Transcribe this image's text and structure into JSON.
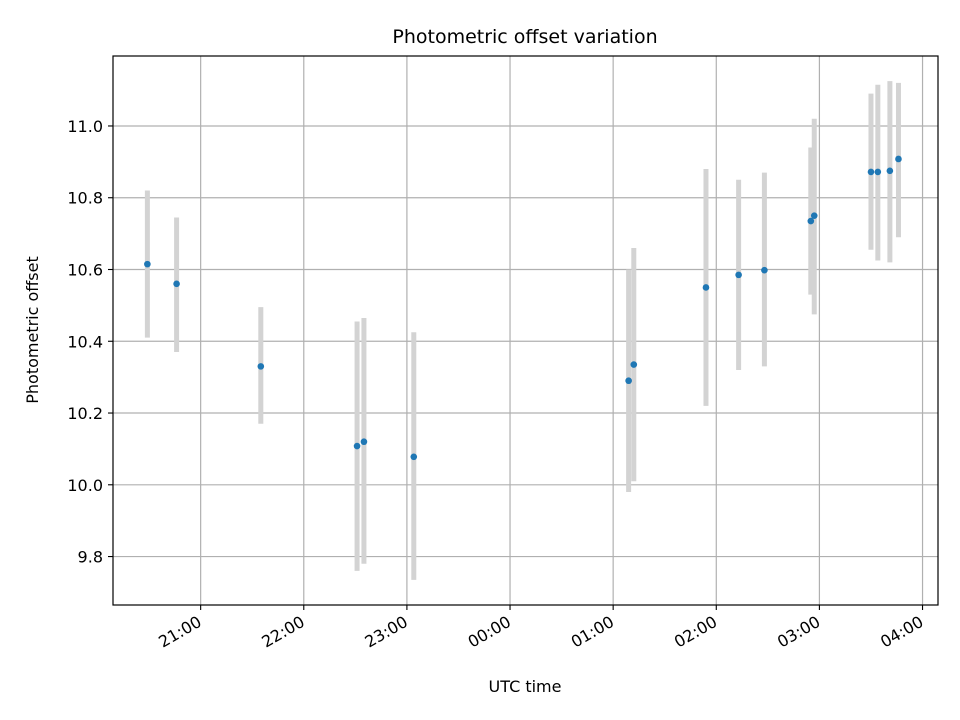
{
  "chart_data": {
    "type": "scatter",
    "title": "Photometric offset variation",
    "xlabel": "UTC time",
    "ylabel": "Photometric offset",
    "x_tick_labels": [
      "21:00",
      "22:00",
      "23:00",
      "00:00",
      "01:00",
      "02:00",
      "03:00",
      "04:00"
    ],
    "y_tick_labels": [
      "9.8",
      "10.0",
      "10.2",
      "10.4",
      "10.6",
      "10.8",
      "11.0"
    ],
    "y_ticks": [
      9.8,
      10.0,
      10.2,
      10.4,
      10.6,
      10.8,
      11.0
    ],
    "ylim": [
      9.665,
      11.195
    ],
    "xlim": [
      "20:09",
      "04:09"
    ],
    "grid": true,
    "colors": {
      "points": "#1f77b4",
      "errorbars": "#d3d3d3",
      "grid": "#b0b0b0"
    },
    "points": [
      {
        "x": "20:29",
        "y": 10.615,
        "lo": 10.41,
        "hi": 10.82
      },
      {
        "x": "20:46",
        "y": 10.56,
        "lo": 10.37,
        "hi": 10.745
      },
      {
        "x": "21:35",
        "y": 10.33,
        "lo": 10.17,
        "hi": 10.495
      },
      {
        "x": "22:31",
        "y": 10.108,
        "lo": 9.76,
        "hi": 10.455
      },
      {
        "x": "22:35",
        "y": 10.12,
        "lo": 9.78,
        "hi": 10.465
      },
      {
        "x": "23:04",
        "y": 10.078,
        "lo": 9.735,
        "hi": 10.425
      },
      {
        "x": "01:09",
        "y": 10.29,
        "lo": 9.98,
        "hi": 10.6
      },
      {
        "x": "01:12",
        "y": 10.335,
        "lo": 10.01,
        "hi": 10.66
      },
      {
        "x": "01:54",
        "y": 10.55,
        "lo": 10.22,
        "hi": 10.88
      },
      {
        "x": "02:13",
        "y": 10.585,
        "lo": 10.32,
        "hi": 10.85
      },
      {
        "x": "02:28",
        "y": 10.598,
        "lo": 10.33,
        "hi": 10.87
      },
      {
        "x": "02:55",
        "y": 10.735,
        "lo": 10.53,
        "hi": 10.94
      },
      {
        "x": "02:57",
        "y": 10.75,
        "lo": 10.475,
        "hi": 11.02
      },
      {
        "x": "03:30",
        "y": 10.872,
        "lo": 10.655,
        "hi": 11.09
      },
      {
        "x": "03:34",
        "y": 10.872,
        "lo": 10.625,
        "hi": 11.115
      },
      {
        "x": "03:41",
        "y": 10.875,
        "lo": 10.62,
        "hi": 11.125
      },
      {
        "x": "03:46",
        "y": 10.908,
        "lo": 10.69,
        "hi": 11.12
      }
    ]
  }
}
